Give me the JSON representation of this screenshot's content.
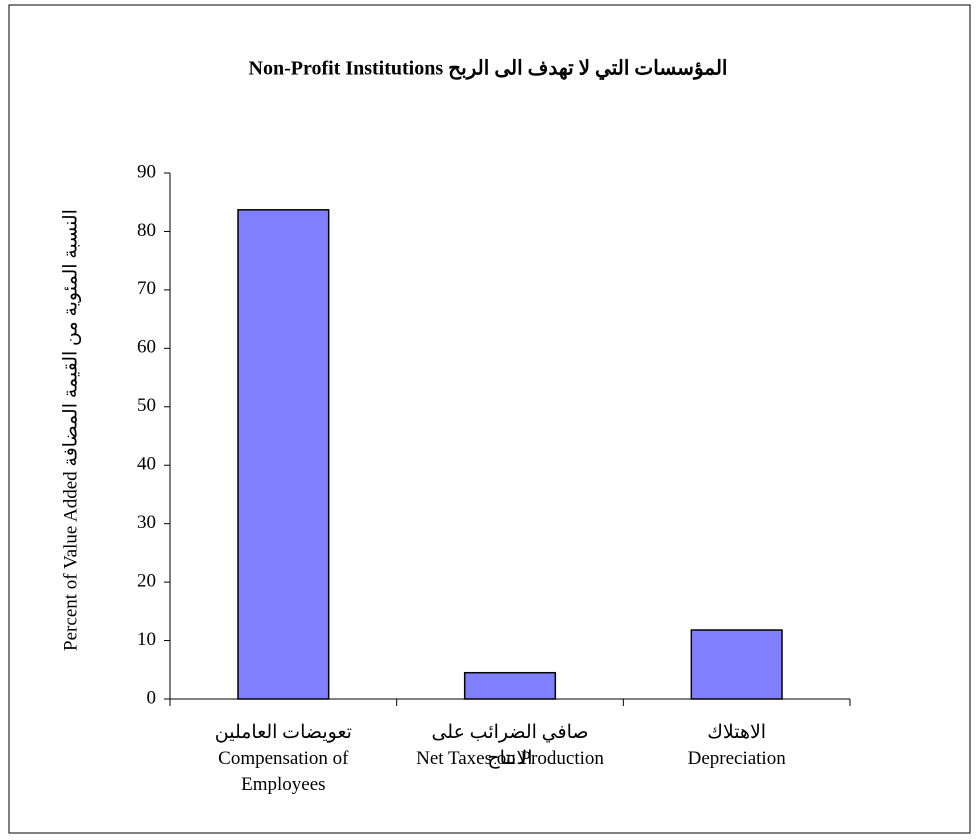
{
  "chart_data": {
    "type": "bar",
    "title": "Non-Profit Institutions المؤسسات التي لا تهدف الى الربح",
    "y_label": "Percent of Value Added النسبة المئوية من القيمة المضافة",
    "categories": [
      "Compensation of Employees",
      "Net Taxes on Production",
      "Depreciation"
    ],
    "categories_ar": [
      "تعويضات العاملين",
      "صافي الضرائب على الانتاج",
      "الاهتلاك"
    ],
    "values": [
      83.7,
      4.5,
      11.8
    ],
    "color": "#8080ff",
    "ylim": [
      0,
      90
    ],
    "yticks": [
      0,
      10,
      20,
      30,
      40,
      50,
      60,
      70,
      80,
      90
    ],
    "grid": false
  }
}
